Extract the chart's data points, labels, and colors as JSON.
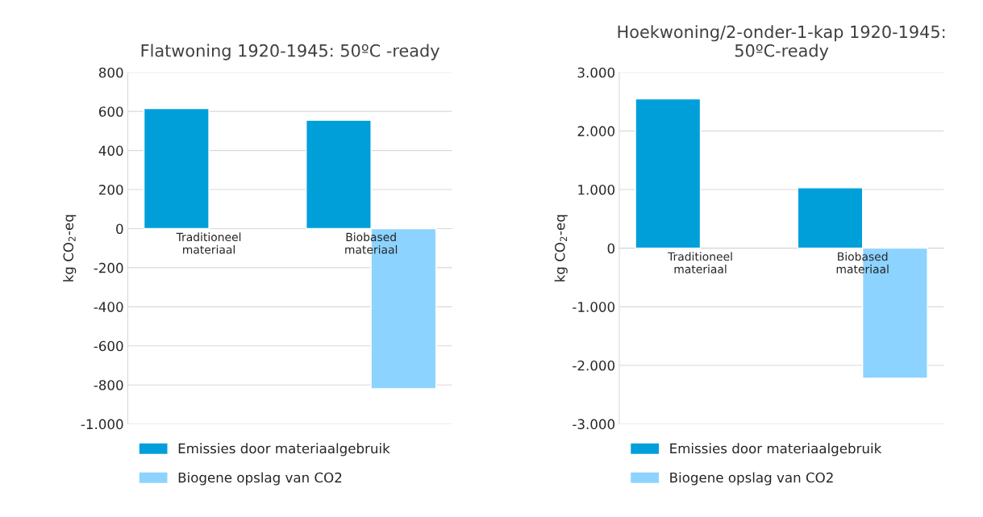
{
  "chart_data": [
    {
      "type": "bar",
      "title": "Flatwoning 1920-1945: 50ºC -ready",
      "ylabel": "kg CO$_{2}$-eq",
      "categories": [
        "Traditioneel\nmateriaal",
        "Biobased\nmateriaal"
      ],
      "series": [
        {
          "name": "Emissies door materiaalgebruik",
          "color": "#009fda",
          "values": [
            615,
            555
          ]
        },
        {
          "name": "Biogene opslag van CO2",
          "color": "#8dd3ff",
          "values": [
            null,
            -820
          ]
        }
      ],
      "ylim": [
        -1000,
        800
      ],
      "yticks": [
        {
          "value": -1000,
          "label": "-1.000"
        },
        {
          "value": -800,
          "label": "-800"
        },
        {
          "value": -600,
          "label": "-600"
        },
        {
          "value": -400,
          "label": "-400"
        },
        {
          "value": -200,
          "label": "-200"
        },
        0,
        200,
        400,
        600,
        800
      ],
      "grid": "y",
      "legend": "bottom"
    },
    {
      "type": "bar",
      "title": "Hoekwoning/2-onder-1-kap 1920-1945:\n50ºC-ready",
      "ylabel": "kg CO$_{2}$-eq",
      "categories": [
        "Traditioneel\nmateriaal",
        "Biobased\nmateriaal"
      ],
      "series": [
        {
          "name": "Emissies door materiaalgebruik",
          "color": "#009fda",
          "values": [
            2550,
            1030
          ]
        },
        {
          "name": "Biogene opslag van CO2",
          "color": "#8dd3ff",
          "values": [
            null,
            -2220
          ]
        }
      ],
      "ylim": [
        -3000,
        3000
      ],
      "yticks": [
        {
          "value": -3000,
          "label": "-3.000"
        },
        {
          "value": -2000,
          "label": "-2.000"
        },
        {
          "value": -1000,
          "label": "-1.000"
        },
        0,
        {
          "value": 1000,
          "label": "1.000"
        },
        {
          "value": 2000,
          "label": "2.000"
        },
        {
          "value": 3000,
          "label": "3.000"
        }
      ],
      "grid": "y",
      "legend": "bottom"
    }
  ]
}
